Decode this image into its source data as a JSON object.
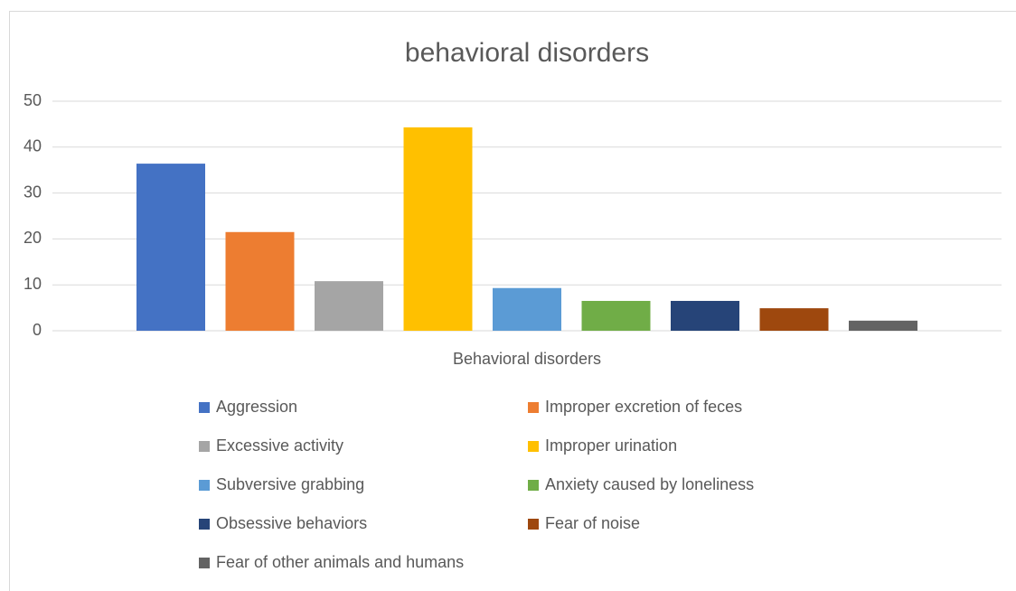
{
  "chart_data": {
    "type": "bar",
    "title": "behavioral disorders",
    "categories": [
      "Behavioral disorders"
    ],
    "series": [
      {
        "name": "Aggression",
        "color": "#4472c4",
        "values": [
          36.4
        ]
      },
      {
        "name": "Improper excretion of feces",
        "color": "#ed7d31",
        "values": [
          21.5
        ]
      },
      {
        "name": "Excessive activity",
        "color": "#a5a5a5",
        "values": [
          10.8
        ]
      },
      {
        "name": "Improper urination",
        "color": "#ffc000",
        "values": [
          44.3
        ]
      },
      {
        "name": "Subversive grabbing",
        "color": "#5b9bd5",
        "values": [
          9.3
        ]
      },
      {
        "name": "Anxiety caused by loneliness",
        "color": "#70ad47",
        "values": [
          6.5
        ]
      },
      {
        "name": "Obsessive behaviors",
        "color": "#264478",
        "values": [
          6.5
        ]
      },
      {
        "name": "Fear of noise",
        "color": "#9e480e",
        "values": [
          4.9
        ]
      },
      {
        "name": "Fear of other animals and humans",
        "color": "#636363",
        "values": [
          2.2
        ]
      }
    ],
    "ylim": [
      0,
      50
    ],
    "yticks": [
      0,
      10,
      20,
      30,
      40,
      50
    ],
    "grid": true,
    "legend": "bottom"
  }
}
